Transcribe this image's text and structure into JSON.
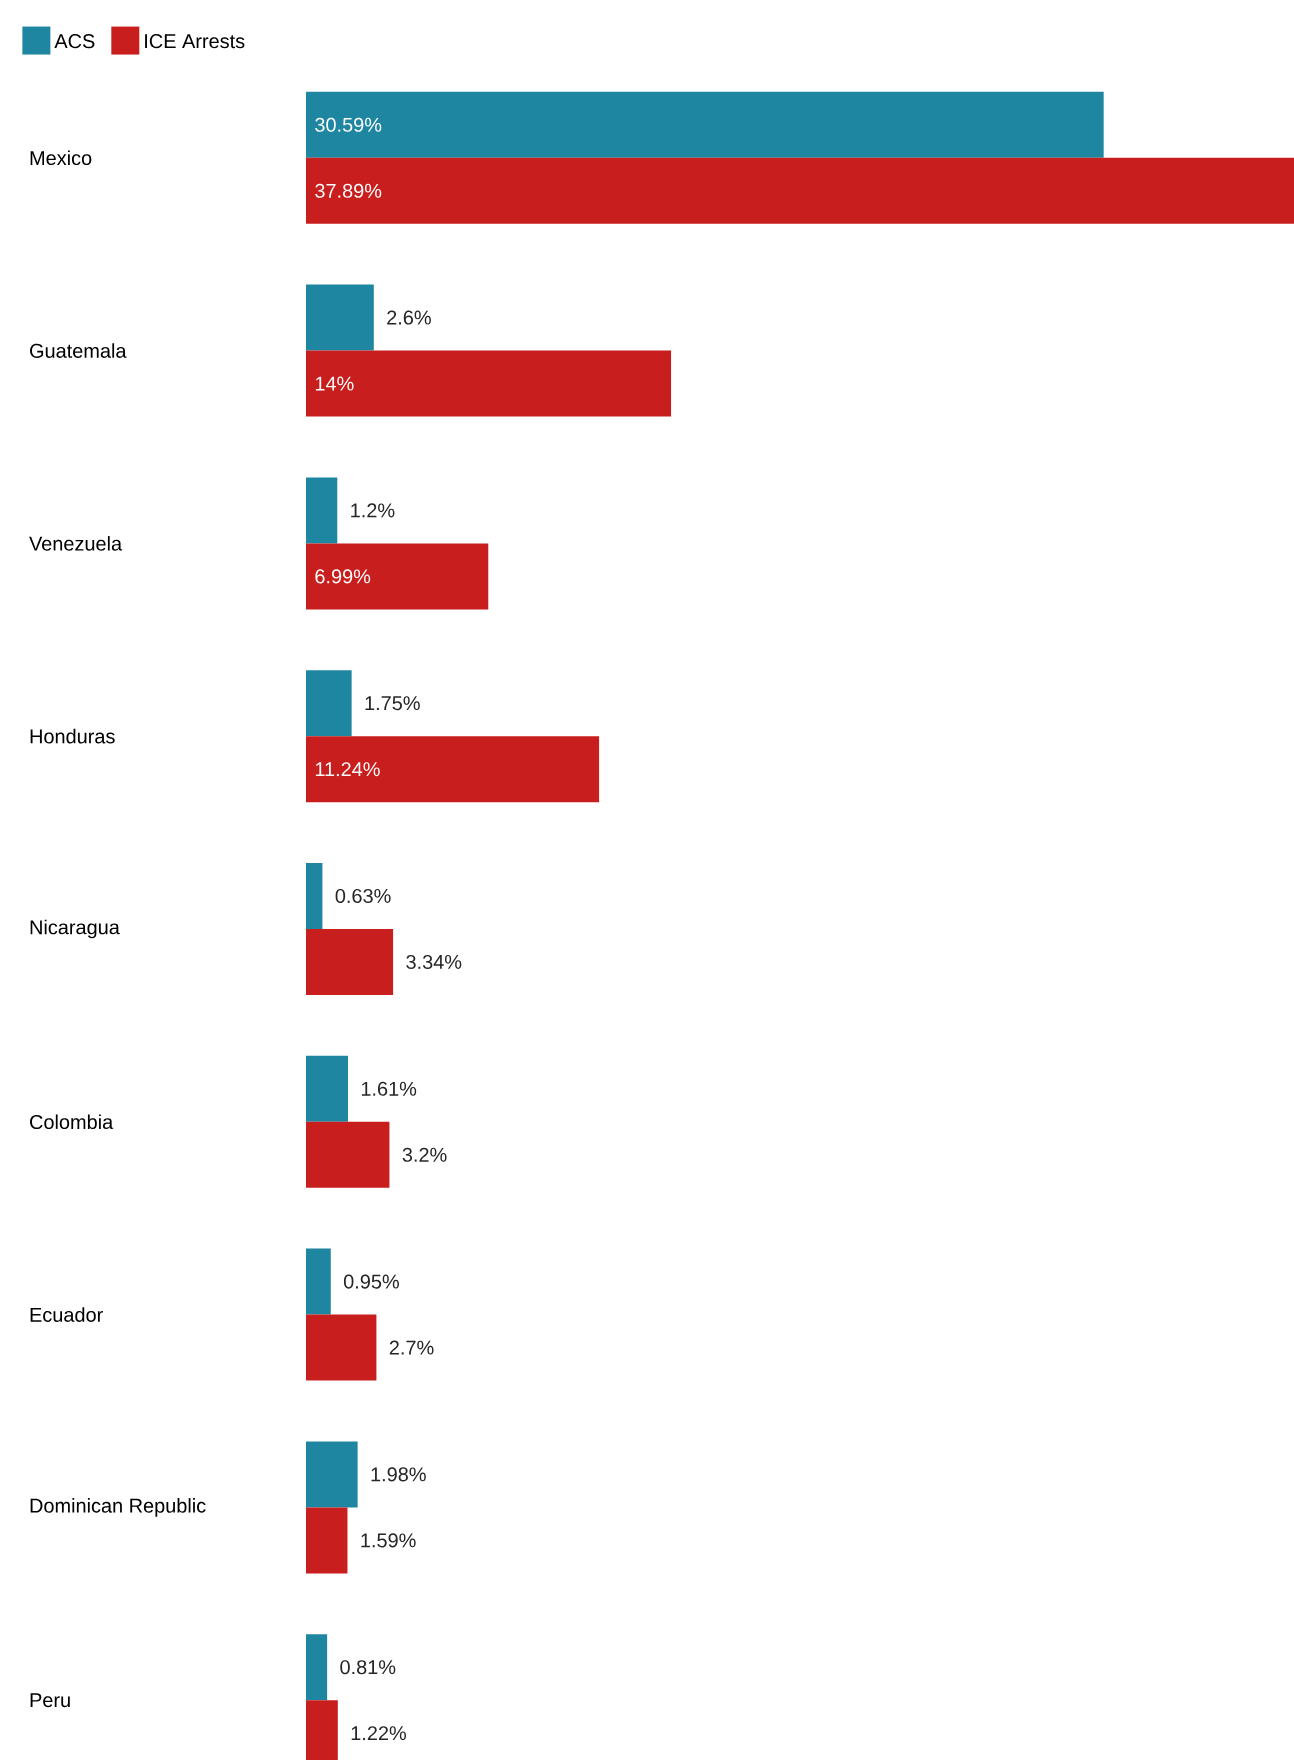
{
  "chart_data": {
    "type": "bar",
    "orientation": "horizontal",
    "legend": "top left",
    "categories": [
      "Mexico",
      "Guatemala",
      "Venezuela",
      "Honduras",
      "Nicaragua",
      "Colombia",
      "Ecuador",
      "Dominican Republic",
      "Peru"
    ],
    "series": [
      {
        "name": "ACS",
        "color": "#1f86a2",
        "values": [
          30.59,
          2.6,
          1.2,
          1.75,
          0.63,
          1.61,
          0.95,
          1.98,
          0.81
        ],
        "value_labels": [
          "30.59%",
          "2.6%",
          "1.2%",
          "1.75%",
          "0.63%",
          "1.61%",
          "0.95%",
          "1.98%",
          "0.81%"
        ]
      },
      {
        "name": "ICE Arrests",
        "color": "#c81e1e",
        "values": [
          37.89,
          14,
          6.99,
          11.24,
          3.34,
          3.2,
          2.7,
          1.59,
          1.22
        ],
        "value_labels": [
          "37.89%",
          "14%",
          "6.99%",
          "11.24%",
          "3.34%",
          "3.2%",
          "2.7%",
          "1.59%",
          "1.22%"
        ]
      }
    ]
  }
}
